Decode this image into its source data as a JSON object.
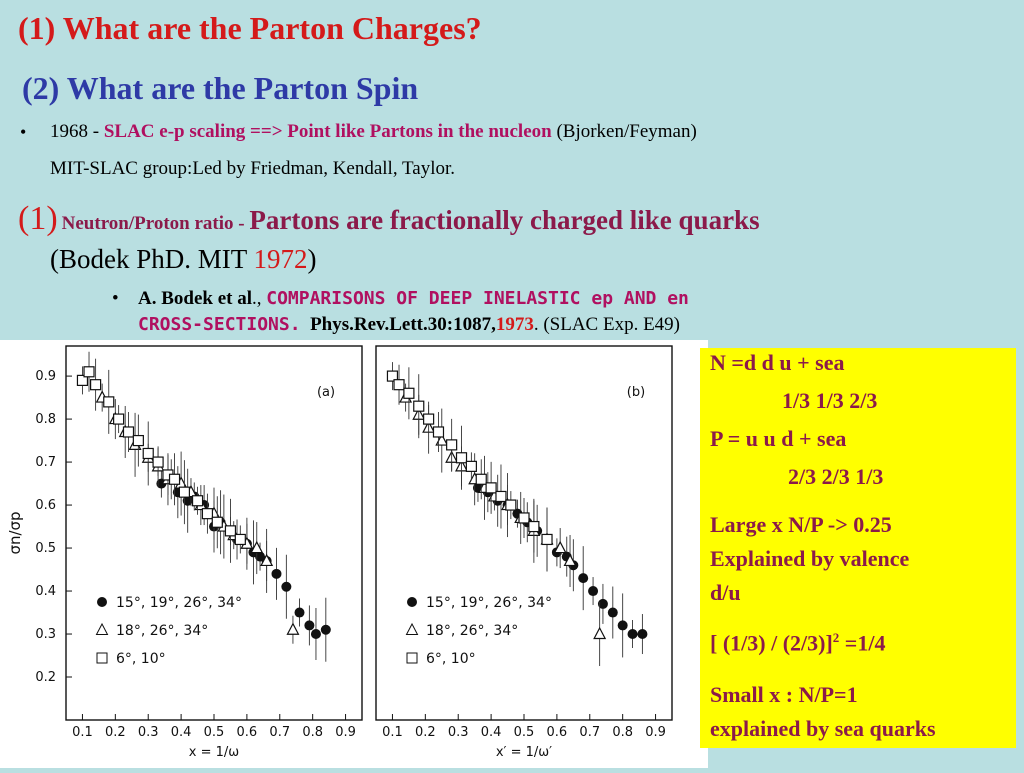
{
  "title1": "(1) What are the Parton Charges?",
  "title2": "(2) What are the Parton Spin",
  "bullet1": {
    "prefix": "1968 - ",
    "highlight": "SLAC e-p scaling ==> Point like Partons in the nucleon",
    "suffix": " (Bjorken/Feyman)",
    "line2": "MIT-SLAC group:Led by Friedman, Kendall, Taylor."
  },
  "section1": {
    "num": "(1)",
    "small": "Neutron/Proton ratio - ",
    "main": "Partons are  fractionally charged like quarks",
    "line2_a": "(Bodek PhD.  MIT ",
    "year": "1972",
    "line2_b": ")"
  },
  "reference": {
    "author": "A. Bodek et al",
    "sep": ".,",
    "title_a": "COMPARISONS OF DEEP INELASTIC ep AND en",
    "title_b": "CROSS-SECTIONS.",
    "journal": "Phys.Rev.Lett.30:1087,",
    "year": "1973",
    "exp": ". (SLAC Exp. E49)"
  },
  "yellow_box": {
    "line1": "N     =d    d    u       + sea",
    "line2": "1/3 1/3 2/3",
    "line3": "P     = u    u   d     + sea",
    "line4": "2/3 2/3 1/3",
    "line5": "Large x    N/P -> 0.25",
    "line6": "Explained by valence",
    "line7": "d/u",
    "line8a": "[ (1/3) / (2/3)]",
    "line8sup": "2",
    "line8b": "  =1/4",
    "line9": "Small x :  N/P=1",
    "line10": "explained by sea quarks"
  },
  "chart_data": [
    {
      "type": "scatter",
      "panel_label": "(a)",
      "ylabel": "σn/σp",
      "xlabel": "x = 1/ω",
      "xticks": [
        "0.1",
        "0.2",
        "0.3",
        "0.4",
        "0.5",
        "0.6",
        "0.7",
        "0.8",
        "0.9"
      ],
      "yticks": [
        "0.2",
        "0.3",
        "0.4",
        "0.5",
        "0.6",
        "0.7",
        "0.8",
        "0.9"
      ],
      "xlim": [
        0.05,
        0.95
      ],
      "ylim": [
        0.1,
        0.97
      ],
      "legend": [
        "15°, 19°, 26°, 34°",
        "18°, 26°, 34°",
        "6°, 10°"
      ],
      "series": [
        {
          "name": "15°, 19°, 26°, 34°",
          "marker": "circle",
          "x": [
            0.34,
            0.37,
            0.39,
            0.42,
            0.44,
            0.47,
            0.5,
            0.52,
            0.55,
            0.57,
            0.6,
            0.62,
            0.64,
            0.66,
            0.69,
            0.72,
            0.76,
            0.79,
            0.81,
            0.84
          ],
          "y": [
            0.65,
            0.66,
            0.63,
            0.61,
            0.62,
            0.6,
            0.55,
            0.56,
            0.54,
            0.52,
            0.51,
            0.49,
            0.48,
            0.47,
            0.44,
            0.41,
            0.35,
            0.32,
            0.3,
            0.31
          ]
        },
        {
          "name": "18°, 26°, 34°",
          "marker": "triangle",
          "x": [
            0.16,
            0.2,
            0.23,
            0.26,
            0.3,
            0.33,
            0.36,
            0.4,
            0.43,
            0.46,
            0.5,
            0.53,
            0.56,
            0.6,
            0.63,
            0.66,
            0.74
          ],
          "y": [
            0.85,
            0.8,
            0.77,
            0.74,
            0.71,
            0.69,
            0.66,
            0.65,
            0.63,
            0.6,
            0.58,
            0.55,
            0.53,
            0.51,
            0.5,
            0.47,
            0.31
          ]
        },
        {
          "name": "6°, 10°",
          "marker": "square",
          "x": [
            0.1,
            0.12,
            0.14,
            0.18,
            0.21,
            0.24,
            0.27,
            0.3,
            0.33,
            0.36,
            0.38,
            0.41,
            0.45,
            0.48,
            0.51,
            0.55,
            0.58
          ],
          "y": [
            0.89,
            0.91,
            0.88,
            0.84,
            0.8,
            0.77,
            0.75,
            0.72,
            0.7,
            0.67,
            0.66,
            0.63,
            0.61,
            0.58,
            0.56,
            0.54,
            0.52
          ]
        }
      ]
    },
    {
      "type": "scatter",
      "panel_label": "(b)",
      "xlabel": "x′ = 1/ω′",
      "xticks": [
        "0.1",
        "0.2",
        "0.3",
        "0.4",
        "0.5",
        "0.6",
        "0.7",
        "0.8",
        "0.9"
      ],
      "xlim": [
        0.05,
        0.95
      ],
      "ylim": [
        0.1,
        0.97
      ],
      "series": [
        {
          "name": "15°, 19°, 26°, 34°",
          "marker": "circle",
          "x": [
            0.36,
            0.39,
            0.42,
            0.45,
            0.48,
            0.51,
            0.54,
            0.57,
            0.6,
            0.63,
            0.65,
            0.68,
            0.71,
            0.74,
            0.77,
            0.8,
            0.83,
            0.86
          ],
          "y": [
            0.64,
            0.63,
            0.61,
            0.6,
            0.58,
            0.56,
            0.54,
            0.52,
            0.49,
            0.48,
            0.46,
            0.43,
            0.4,
            0.37,
            0.35,
            0.32,
            0.3,
            0.3
          ]
        },
        {
          "name": "18°, 26°, 34°",
          "marker": "triangle",
          "x": [
            0.14,
            0.18,
            0.21,
            0.25,
            0.28,
            0.31,
            0.35,
            0.38,
            0.41,
            0.45,
            0.49,
            0.53,
            0.57,
            0.61,
            0.64,
            0.73
          ],
          "y": [
            0.85,
            0.81,
            0.78,
            0.75,
            0.71,
            0.69,
            0.66,
            0.64,
            0.62,
            0.6,
            0.57,
            0.54,
            0.52,
            0.5,
            0.47,
            0.3
          ]
        },
        {
          "name": "6°, 10°",
          "marker": "square",
          "x": [
            0.1,
            0.12,
            0.15,
            0.18,
            0.21,
            0.24,
            0.28,
            0.31,
            0.34,
            0.37,
            0.4,
            0.43,
            0.46,
            0.5,
            0.53,
            0.57
          ],
          "y": [
            0.9,
            0.88,
            0.86,
            0.83,
            0.8,
            0.77,
            0.74,
            0.71,
            0.69,
            0.66,
            0.64,
            0.62,
            0.6,
            0.57,
            0.55,
            0.52
          ]
        }
      ]
    }
  ]
}
